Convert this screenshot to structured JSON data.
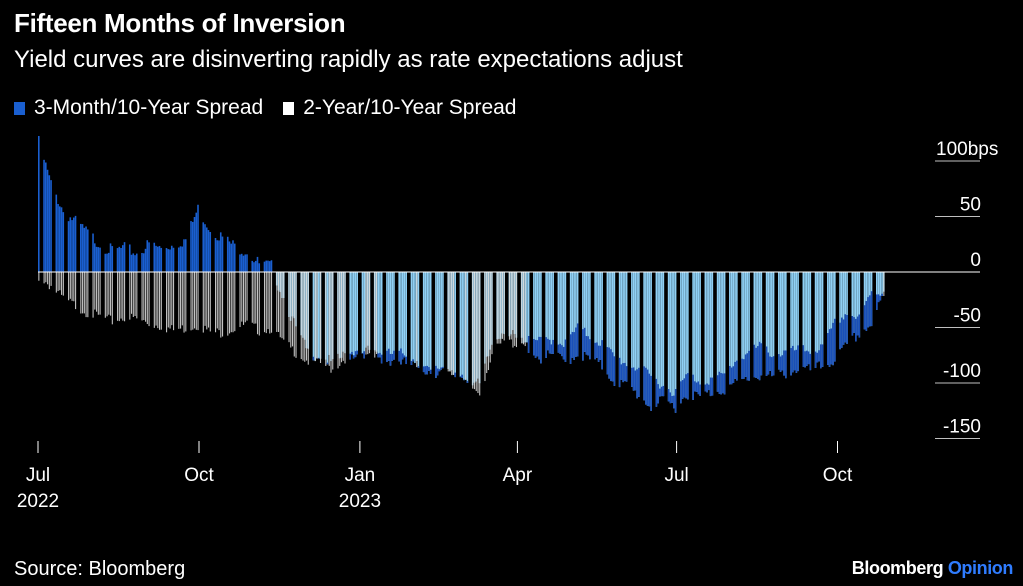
{
  "title": "Fifteen Months of Inversion",
  "subtitle": "Yield curves are disinverting rapidly as rate expectations adjust",
  "source": "Source: Bloomberg",
  "brand": {
    "name": "Bloomberg",
    "suffix": "Opinion"
  },
  "colors": {
    "background": "#000000",
    "series_3m_pos": "#1a5fd0",
    "series_3m_neg": "#8fd0f5",
    "series_3m_deep": "#1a4fb8",
    "series_2y": "#d8d8d8",
    "zero_line": "#ffffff",
    "grid": "#ffffff",
    "brand_accent": "#2f7cff"
  },
  "chart_data": {
    "type": "bar",
    "title": "Fifteen Months of Inversion",
    "subtitle": "Yield curves are disinverting rapidly as rate expectations adjust",
    "x_tick_labels": [
      {
        "label": "Jul",
        "sub": "2022",
        "date": "2022-07-01"
      },
      {
        "label": "Oct",
        "sub": "",
        "date": "2022-10-01"
      },
      {
        "label": "Jan",
        "sub": "2023",
        "date": "2023-01-01"
      },
      {
        "label": "Apr",
        "sub": "",
        "date": "2023-04-01"
      },
      {
        "label": "Jul",
        "sub": "",
        "date": "2023-07-01"
      },
      {
        "label": "Oct",
        "sub": "",
        "date": "2023-10-01"
      }
    ],
    "y_ticks": [
      100,
      50,
      0,
      -50,
      -100,
      -150
    ],
    "y_tick_labels": [
      "100bps",
      "50",
      "0",
      "-50",
      "-100",
      "-150"
    ],
    "ylim": [
      -175,
      110
    ],
    "xlim": [
      "2022-07-01",
      "2023-10-31"
    ],
    "legend_position": "top-left",
    "series": [
      {
        "name": "3-Month/10-Year Spread",
        "color": "#1a5fd0",
        "points": [
          [
            "2022-07-01",
            120
          ],
          [
            "2022-07-08",
            82
          ],
          [
            "2022-07-15",
            58
          ],
          [
            "2022-07-22",
            48
          ],
          [
            "2022-07-29",
            38
          ],
          [
            "2022-08-05",
            28
          ],
          [
            "2022-08-12",
            22
          ],
          [
            "2022-08-19",
            24
          ],
          [
            "2022-08-26",
            20
          ],
          [
            "2022-09-02",
            28
          ],
          [
            "2022-09-09",
            24
          ],
          [
            "2022-09-16",
            28
          ],
          [
            "2022-09-23",
            32
          ],
          [
            "2022-09-30",
            60
          ],
          [
            "2022-10-07",
            42
          ],
          [
            "2022-10-14",
            34
          ],
          [
            "2022-10-21",
            26
          ],
          [
            "2022-10-28",
            22
          ],
          [
            "2022-11-04",
            10
          ],
          [
            "2022-11-11",
            8
          ],
          [
            "2022-11-18",
            -20
          ],
          [
            "2022-11-25",
            -48
          ],
          [
            "2022-12-02",
            -70
          ],
          [
            "2022-12-09",
            -72
          ],
          [
            "2022-12-16",
            -80
          ],
          [
            "2022-12-23",
            -72
          ],
          [
            "2023-01-06",
            -68
          ],
          [
            "2023-01-13",
            -78
          ],
          [
            "2023-01-20",
            -75
          ],
          [
            "2023-01-27",
            -80
          ],
          [
            "2023-02-03",
            -83
          ],
          [
            "2023-02-10",
            -86
          ],
          [
            "2023-02-17",
            -88
          ],
          [
            "2023-02-24",
            -90
          ],
          [
            "2023-03-03",
            -92
          ],
          [
            "2023-03-10",
            -100
          ],
          [
            "2023-03-17",
            -62
          ],
          [
            "2023-03-24",
            -48
          ],
          [
            "2023-03-31",
            -58
          ],
          [
            "2023-04-07",
            -65
          ],
          [
            "2023-04-14",
            -75
          ],
          [
            "2023-04-21",
            -72
          ],
          [
            "2023-04-28",
            -78
          ],
          [
            "2023-05-05",
            -70
          ],
          [
            "2023-05-12",
            -76
          ],
          [
            "2023-05-19",
            -82
          ],
          [
            "2023-05-26",
            -95
          ],
          [
            "2023-06-02",
            -100
          ],
          [
            "2023-06-09",
            -108
          ],
          [
            "2023-06-16",
            -118
          ],
          [
            "2023-06-23",
            -114
          ],
          [
            "2023-06-30",
            -118
          ],
          [
            "2023-07-07",
            -106
          ],
          [
            "2023-07-14",
            -110
          ],
          [
            "2023-07-21",
            -105
          ],
          [
            "2023-07-28",
            -102
          ],
          [
            "2023-08-04",
            -98
          ],
          [
            "2023-08-11",
            -92
          ],
          [
            "2023-08-18",
            -90
          ],
          [
            "2023-08-25",
            -92
          ],
          [
            "2023-09-01",
            -88
          ],
          [
            "2023-09-08",
            -84
          ],
          [
            "2023-09-15",
            -86
          ],
          [
            "2023-09-22",
            -82
          ],
          [
            "2023-09-29",
            -76
          ],
          [
            "2023-10-06",
            -64
          ],
          [
            "2023-10-13",
            -52
          ],
          [
            "2023-10-20",
            -44
          ],
          [
            "2023-10-27",
            -18
          ]
        ]
      },
      {
        "name": "2-Year/10-Year Spread",
        "color": "#d8d8d8",
        "points": [
          [
            "2022-07-01",
            -2
          ],
          [
            "2022-07-08",
            -10
          ],
          [
            "2022-07-15",
            -22
          ],
          [
            "2022-07-22",
            -28
          ],
          [
            "2022-07-29",
            -34
          ],
          [
            "2022-08-05",
            -38
          ],
          [
            "2022-08-12",
            -42
          ],
          [
            "2022-08-19",
            -38
          ],
          [
            "2022-08-26",
            -40
          ],
          [
            "2022-09-02",
            -44
          ],
          [
            "2022-09-09",
            -46
          ],
          [
            "2022-09-16",
            -50
          ],
          [
            "2022-09-23",
            -48
          ],
          [
            "2022-09-30",
            -45
          ],
          [
            "2022-10-07",
            -52
          ],
          [
            "2022-10-14",
            -52
          ],
          [
            "2022-10-21",
            -48
          ],
          [
            "2022-10-28",
            -45
          ],
          [
            "2022-11-04",
            -50
          ],
          [
            "2022-11-11",
            -48
          ],
          [
            "2022-11-18",
            -62
          ],
          [
            "2022-11-25",
            -70
          ],
          [
            "2022-12-02",
            -78
          ],
          [
            "2022-12-09",
            -80
          ],
          [
            "2022-12-16",
            -85
          ],
          [
            "2022-12-23",
            -75
          ],
          [
            "2023-01-06",
            -70
          ],
          [
            "2023-01-13",
            -70
          ],
          [
            "2023-01-20",
            -72
          ],
          [
            "2023-01-27",
            -70
          ],
          [
            "2023-02-03",
            -80
          ],
          [
            "2023-02-10",
            -88
          ],
          [
            "2023-02-17",
            -82
          ],
          [
            "2023-02-24",
            -88
          ],
          [
            "2023-03-03",
            -100
          ],
          [
            "2023-03-10",
            -106
          ],
          [
            "2023-03-17",
            -72
          ],
          [
            "2023-03-24",
            -60
          ],
          [
            "2023-03-31",
            -62
          ],
          [
            "2023-04-07",
            -60
          ],
          [
            "2023-04-14",
            -60
          ],
          [
            "2023-04-21",
            -58
          ],
          [
            "2023-04-28",
            -62
          ],
          [
            "2023-05-05",
            -48
          ],
          [
            "2023-05-12",
            -55
          ],
          [
            "2023-05-19",
            -62
          ],
          [
            "2023-05-26",
            -74
          ],
          [
            "2023-06-02",
            -80
          ],
          [
            "2023-06-09",
            -84
          ],
          [
            "2023-06-16",
            -92
          ],
          [
            "2023-06-23",
            -100
          ],
          [
            "2023-06-30",
            -106
          ],
          [
            "2023-07-07",
            -90
          ],
          [
            "2023-07-14",
            -96
          ],
          [
            "2023-07-21",
            -94
          ],
          [
            "2023-07-28",
            -90
          ],
          [
            "2023-08-04",
            -76
          ],
          [
            "2023-08-11",
            -70
          ],
          [
            "2023-08-18",
            -64
          ],
          [
            "2023-08-25",
            -72
          ],
          [
            "2023-09-01",
            -70
          ],
          [
            "2023-09-08",
            -68
          ],
          [
            "2023-09-15",
            -68
          ],
          [
            "2023-09-22",
            -66
          ],
          [
            "2023-09-29",
            -44
          ],
          [
            "2023-10-06",
            -34
          ],
          [
            "2023-10-13",
            -40
          ],
          [
            "2023-10-20",
            -16
          ],
          [
            "2023-10-27",
            -16
          ]
        ]
      }
    ]
  }
}
